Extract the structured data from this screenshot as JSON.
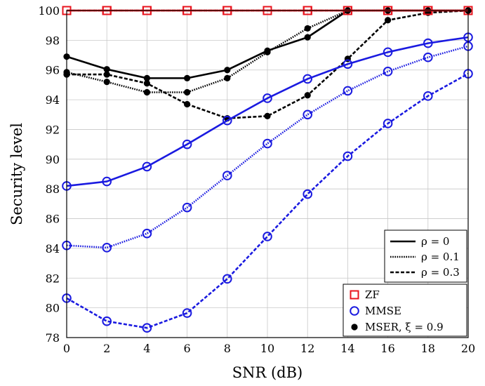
{
  "chart_data": {
    "type": "line",
    "title": "",
    "xlabel": "SNR (dB)",
    "ylabel": "Security level",
    "x": [
      0,
      2,
      4,
      6,
      8,
      10,
      12,
      14,
      16,
      18,
      20
    ],
    "xlim": [
      0,
      20
    ],
    "ylim": [
      78,
      100
    ],
    "xticks": [
      "0",
      "2",
      "4",
      "6",
      "8",
      "10",
      "12",
      "14",
      "16",
      "18",
      "20"
    ],
    "yticks": [
      "78",
      "80",
      "82",
      "84",
      "86",
      "88",
      "90",
      "92",
      "94",
      "96",
      "98",
      "100"
    ],
    "grid": true,
    "series": [
      {
        "scheme": "ZF",
        "rho": "0",
        "values": [
          100,
          100,
          100,
          100,
          100,
          100,
          100,
          100,
          100,
          100,
          100
        ]
      },
      {
        "scheme": "ZF",
        "rho": "0.1",
        "values": [
          100,
          100,
          100,
          100,
          100,
          100,
          100,
          100,
          100,
          100,
          100
        ]
      },
      {
        "scheme": "ZF",
        "rho": "0.3",
        "values": [
          100,
          100,
          100,
          100,
          100,
          100,
          100,
          100,
          100,
          100,
          100
        ]
      },
      {
        "scheme": "MMSE",
        "rho": "0",
        "values": [
          88.2,
          88.5,
          89.5,
          91.0,
          92.6,
          94.1,
          95.4,
          96.4,
          97.2,
          97.8,
          98.2
        ]
      },
      {
        "scheme": "MMSE",
        "rho": "0.1",
        "values": [
          84.2,
          84.05,
          85.0,
          86.75,
          88.9,
          91.05,
          93.0,
          94.6,
          95.9,
          96.85,
          97.6
        ]
      },
      {
        "scheme": "MMSE",
        "rho": "0.3",
        "values": [
          80.65,
          79.1,
          78.65,
          79.65,
          81.95,
          84.8,
          87.65,
          90.2,
          92.4,
          94.25,
          95.75
        ]
      },
      {
        "scheme": "MSER",
        "rho": "0",
        "values": [
          96.9,
          96.05,
          95.45,
          95.45,
          96.0,
          97.3,
          98.2,
          100,
          100,
          100,
          100
        ]
      },
      {
        "scheme": "MSER",
        "rho": "0.1",
        "values": [
          95.85,
          95.2,
          94.5,
          94.5,
          95.45,
          97.2,
          98.8,
          100,
          100,
          100,
          100
        ]
      },
      {
        "scheme": "MSER",
        "rho": "0.3",
        "values": [
          95.7,
          95.7,
          95.1,
          93.7,
          92.75,
          92.9,
          94.3,
          96.75,
          99.35,
          99.85,
          100
        ]
      }
    ],
    "legend_linestyle": {
      "placement": "lower-right",
      "entries": [
        {
          "label": "ρ = 0",
          "style": "solid"
        },
        {
          "label": "ρ = 0.1",
          "style": "dotted"
        },
        {
          "label": "ρ = 0.3",
          "style": "dashed"
        }
      ]
    },
    "legend_marker": {
      "placement": "bottom-right",
      "entries": [
        {
          "label": "ZF",
          "marker": "square",
          "color": "#e8141e"
        },
        {
          "label": "MMSE",
          "marker": "circle",
          "color": "#1a1ae0"
        },
        {
          "label": "MSER, ξ = 0.9",
          "marker": "dot",
          "color": "#000000"
        }
      ]
    },
    "colors": {
      "ZF": "#e8141e",
      "MMSE": "#1a1ae0",
      "MSER": "#000000",
      "grid": "#c8c8c8"
    }
  }
}
